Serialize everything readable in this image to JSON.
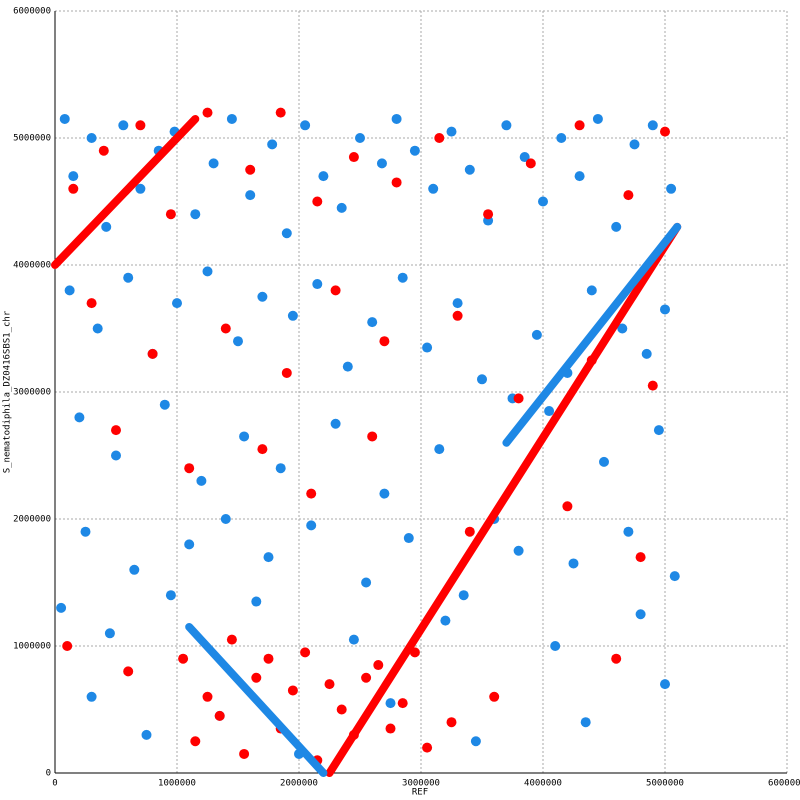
{
  "chart_data": {
    "type": "scatter",
    "xlabel": "REF",
    "ylabel": "S_nematodiphila_DZ0416SBS1_chr",
    "xlim": [
      0,
      6000000
    ],
    "ylim": [
      0,
      6000000
    ],
    "xticks": [
      0,
      1000000,
      2000000,
      3000000,
      4000000,
      5000000,
      6000000
    ],
    "yticks": [
      0,
      1000000,
      2000000,
      3000000,
      4000000,
      5000000,
      6000000
    ],
    "grid": true,
    "segments": [
      {
        "color": "#ff0000",
        "x": [
          0,
          1150000
        ],
        "y": [
          4000000,
          5150000
        ]
      },
      {
        "color": "#ff0000",
        "x": [
          2250000,
          5100000
        ],
        "y": [
          0,
          4300000
        ]
      },
      {
        "color": "#1e88e5",
        "x": [
          3700000,
          5100000
        ],
        "y": [
          2600000,
          4300000
        ]
      },
      {
        "color": "#1e88e5",
        "x": [
          1100000,
          2200000
        ],
        "y": [
          1150000,
          0
        ]
      }
    ],
    "series": [
      {
        "color": "#1e88e5",
        "x": [
          80000,
          150000,
          300000,
          420000,
          560000,
          700000,
          850000,
          980000,
          1150000,
          1300000,
          1450000,
          1600000,
          1780000,
          1900000,
          2050000,
          2200000,
          2350000,
          2500000,
          2680000,
          2800000,
          2950000,
          3100000,
          3250000,
          3400000,
          3550000,
          3700000,
          3850000,
          4000000,
          4150000,
          4300000,
          4450000,
          4600000,
          4750000,
          4900000,
          5050000,
          120000,
          350000,
          600000,
          800000,
          1000000,
          1250000,
          1500000,
          1700000,
          1950000,
          2150000,
          2400000,
          2600000,
          2850000,
          3050000,
          3300000,
          3500000,
          3750000,
          3950000,
          4200000,
          4400000,
          4650000,
          4850000,
          5000000,
          200000,
          500000,
          900000,
          1200000,
          1550000,
          1850000,
          2300000,
          2700000,
          3150000,
          3600000,
          4050000,
          4500000,
          4950000,
          250000,
          650000,
          1100000,
          1400000,
          1750000,
          2100000,
          2550000,
          2900000,
          3350000,
          3800000,
          4250000,
          4700000,
          5080000,
          50000,
          450000,
          950000,
          1650000,
          2450000,
          3200000,
          4100000,
          4800000,
          300000,
          750000,
          1350000,
          2000000,
          2750000,
          3450000,
          4350000,
          5000000
        ],
        "y": [
          5150000,
          4700000,
          5000000,
          4300000,
          5100000,
          4600000,
          4900000,
          5050000,
          4400000,
          4800000,
          5150000,
          4550000,
          4950000,
          4250000,
          5100000,
          4700000,
          4450000,
          5000000,
          4800000,
          5150000,
          4900000,
          4600000,
          5050000,
          4750000,
          4350000,
          5100000,
          4850000,
          4500000,
          5000000,
          4700000,
          5150000,
          4300000,
          4950000,
          5100000,
          4600000,
          3800000,
          3500000,
          3900000,
          3300000,
          3700000,
          3950000,
          3400000,
          3750000,
          3600000,
          3850000,
          3200000,
          3550000,
          3900000,
          3350000,
          3700000,
          3100000,
          2950000,
          3450000,
          3150000,
          3800000,
          3500000,
          3300000,
          3650000,
          2800000,
          2500000,
          2900000,
          2300000,
          2650000,
          2400000,
          2750000,
          2200000,
          2550000,
          2000000,
          2850000,
          2450000,
          2700000,
          1900000,
          1600000,
          1800000,
          2000000,
          1700000,
          1950000,
          1500000,
          1850000,
          1400000,
          1750000,
          1650000,
          1900000,
          1550000,
          1300000,
          1100000,
          1400000,
          1350000,
          1050000,
          1200000,
          1000000,
          1250000,
          600000,
          300000,
          450000,
          150000,
          550000,
          250000,
          400000,
          700000
        ]
      },
      {
        "color": "#ff0000",
        "x": [
          150000,
          400000,
          700000,
          950000,
          1250000,
          1600000,
          1850000,
          2150000,
          2450000,
          2800000,
          3150000,
          3550000,
          3900000,
          4300000,
          4700000,
          5000000,
          300000,
          800000,
          1400000,
          1900000,
          2300000,
          2700000,
          3300000,
          3800000,
          4400000,
          4900000,
          500000,
          1100000,
          1700000,
          2100000,
          2600000,
          3400000,
          4200000,
          4800000,
          1050000,
          1250000,
          1450000,
          1650000,
          1850000,
          2050000,
          2250000,
          2450000,
          2650000,
          2850000,
          3050000,
          1150000,
          1350000,
          1550000,
          1750000,
          1950000,
          2150000,
          2350000,
          2550000,
          2750000,
          2950000,
          3250000,
          100000,
          600000,
          3600000,
          4600000
        ],
        "y": [
          4600000,
          4900000,
          5100000,
          4400000,
          5200000,
          4750000,
          5200000,
          4500000,
          4850000,
          4650000,
          5000000,
          4400000,
          4800000,
          5100000,
          4550000,
          5050000,
          3700000,
          3300000,
          3500000,
          3150000,
          3800000,
          3400000,
          3600000,
          2950000,
          3250000,
          3050000,
          2700000,
          2400000,
          2550000,
          2200000,
          2650000,
          1900000,
          2100000,
          1700000,
          900000,
          600000,
          1050000,
          750000,
          350000,
          950000,
          700000,
          300000,
          850000,
          550000,
          200000,
          250000,
          450000,
          150000,
          900000,
          650000,
          100000,
          500000,
          750000,
          350000,
          950000,
          400000,
          1000000,
          800000,
          600000,
          900000
        ]
      }
    ]
  }
}
